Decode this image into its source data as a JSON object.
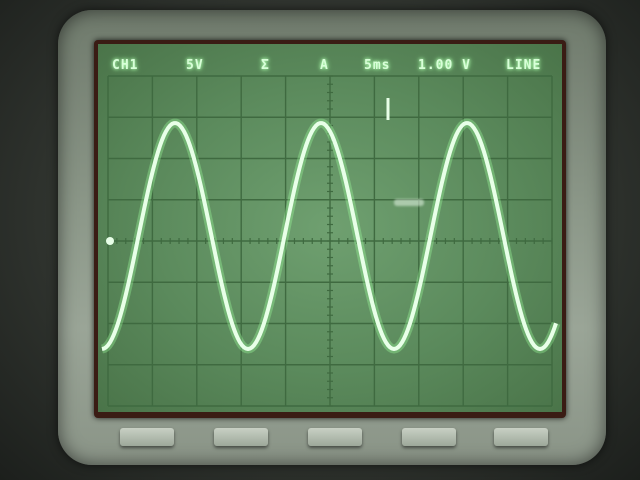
{
  "readout": {
    "channel": "CH1",
    "volts_per_div": "5V",
    "trigger_slope_symbol": "Ʃ",
    "trigger_source": "A",
    "time_per_div": "5ms",
    "trigger_level": "1.00 V",
    "trigger_mode": "LINE"
  },
  "colors": {
    "trace": "#e8ffe8",
    "glow": "#9dff9d",
    "grid": "#3f6a40",
    "screen": "#5b8a5c"
  },
  "buttons": [
    {
      "name": "softkey-1"
    },
    {
      "name": "softkey-2"
    },
    {
      "name": "softkey-3"
    },
    {
      "name": "softkey-4"
    },
    {
      "name": "softkey-5"
    }
  ]
}
